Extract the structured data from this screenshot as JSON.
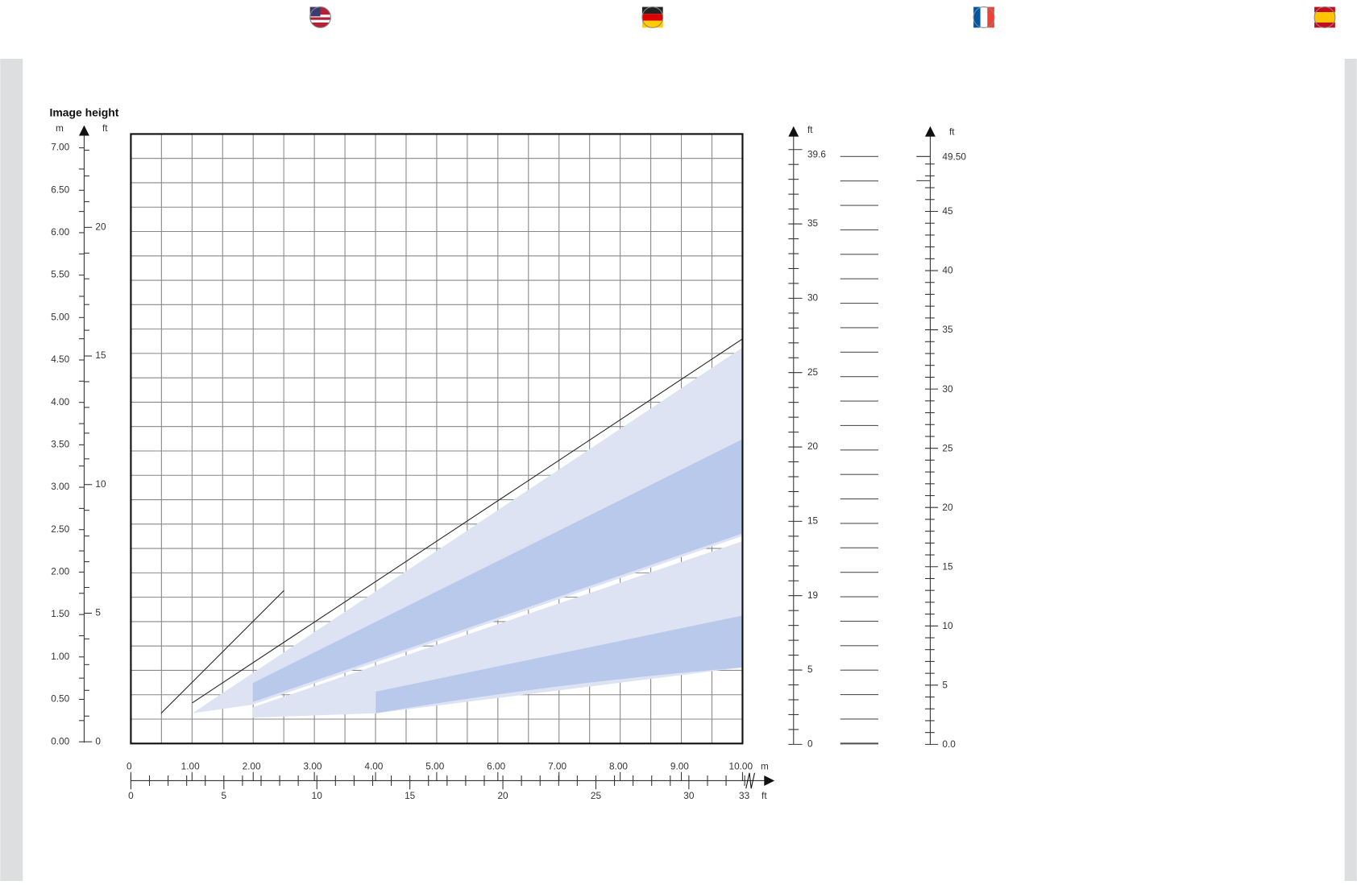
{
  "chart": {
    "title": "Image height",
    "left_axis": {
      "unit_m": "m",
      "unit_ft": "ft",
      "m_ticks": [
        "7.00",
        "6.50",
        "6.00",
        "5.50",
        "5.00",
        "4.50",
        "4.00",
        "3.50",
        "3.00",
        "2.50",
        "2.00",
        "1.50",
        "1.00",
        "0.50",
        "0.00"
      ],
      "ft_ticks": [
        "20",
        "15",
        "10",
        "5",
        "0"
      ]
    },
    "right_axis_1": {
      "unit": "ft",
      "ticks": [
        "39.6",
        "35",
        "30",
        "25",
        "20",
        "15",
        "19",
        "5",
        "0"
      ]
    },
    "right_axis_2": {
      "unit": "ft",
      "ticks": [
        "49.50",
        "45",
        "40",
        "35",
        "30",
        "25",
        "20",
        "15",
        "10",
        "5",
        "0.0"
      ]
    },
    "x_axis": {
      "unit_m": "m",
      "unit_ft": "ft",
      "m_ticks": [
        "0",
        "1.00",
        "2.00",
        "3.00",
        "4.00",
        "5.00",
        "6.00",
        "7.00",
        "8.00",
        "9.00",
        "10.00"
      ],
      "ft_ticks": [
        "0",
        "5",
        "10",
        "15",
        "20",
        "25",
        "30",
        "33"
      ]
    }
  }
}
